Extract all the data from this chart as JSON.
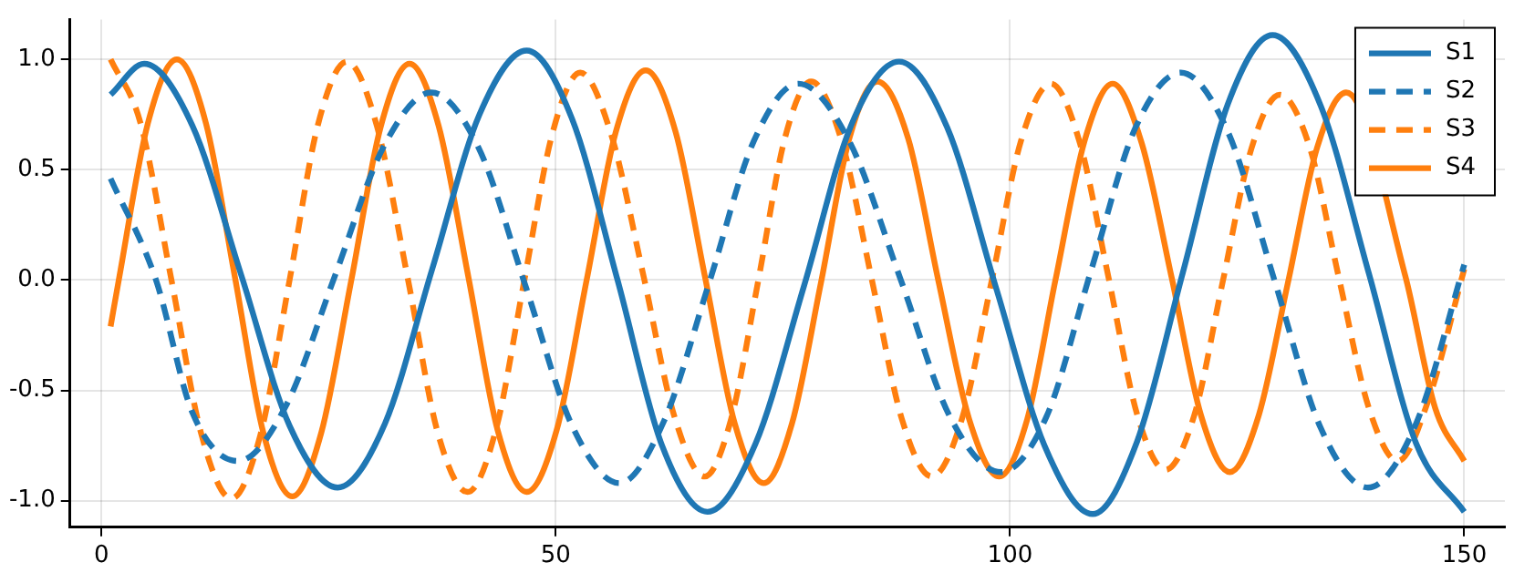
{
  "chart_data": {
    "type": "line",
    "legend": "top right",
    "grid": true,
    "marker": "none",
    "xlim": [
      -3.47,
      154.47
    ],
    "xticks": [
      0,
      50,
      100,
      150
    ],
    "ylim": [
      -1.12,
      1.18
    ],
    "yticks": [
      {
        "value": -1,
        "label": "-1.0"
      },
      {
        "value": -0.5,
        "label": "-0.5"
      },
      {
        "value": 0,
        "label": "0.0"
      },
      {
        "value": 0.5,
        "label": "0.5"
      },
      {
        "value": 1,
        "label": "1.0"
      }
    ],
    "series": [
      {
        "name": "S1",
        "color": "#1f77b4",
        "line_style": "solid",
        "x": [
          1,
          4.7,
          10,
          15.4,
          20.7,
          26,
          31.2,
          36.4,
          41.6,
          46.8,
          51.8,
          56.8,
          61.7,
          66.7,
          72,
          77.3,
          82.5,
          87.8,
          93.1,
          98.5,
          103.8,
          109.1,
          114,
          119,
          124,
          128.9,
          134.2,
          139.5,
          144.7,
          150
        ],
        "values": [
          0.84,
          0.98,
          0.7,
          0.02,
          -0.66,
          -0.94,
          -0.65,
          0.05,
          0.75,
          1.04,
          0.73,
          0.0,
          -0.75,
          -1.05,
          -0.74,
          -0.03,
          0.7,
          0.99,
          0.69,
          -0.04,
          -0.75,
          -1.06,
          -0.73,
          0.03,
          0.8,
          1.11,
          0.79,
          0.03,
          -0.74,
          -1.05
        ]
      },
      {
        "name": "S2",
        "color": "#1f77b4",
        "line_style": "dashed",
        "x": [
          1,
          6,
          10,
          15,
          20.3,
          25.7,
          31,
          36.3,
          41.5,
          46.7,
          51.8,
          57,
          61.9,
          66.9,
          71.8,
          76.7,
          82.3,
          87.9,
          93.4,
          99,
          104,
          108.9,
          113.8,
          118.8,
          124,
          129.1,
          134.2,
          139.4,
          144.7,
          150
        ],
        "values": [
          0.46,
          0.0,
          -0.6,
          -0.82,
          -0.57,
          0.02,
          0.6,
          0.85,
          0.6,
          -0.03,
          -0.66,
          -0.92,
          -0.64,
          -0.01,
          0.63,
          0.89,
          0.63,
          0.01,
          -0.62,
          -0.87,
          -0.62,
          0.04,
          0.69,
          0.94,
          0.67,
          0.0,
          -0.67,
          -0.94,
          -0.65,
          0.07
        ]
      },
      {
        "name": "S3",
        "color": "#ff7f0e",
        "line_style": "dashed",
        "x": [
          1,
          4.3,
          7.7,
          11,
          14.3,
          17.5,
          20.7,
          23.8,
          27,
          30.3,
          33.7,
          37,
          40.3,
          43.4,
          46.5,
          49.6,
          52.7,
          56.1,
          59.6,
          63,
          66.4,
          69.3,
          72.3,
          75.2,
          78.1,
          81.4,
          84.8,
          88.1,
          91.4,
          94.7,
          98,
          101.2,
          104.5,
          107.7,
          110.8,
          114,
          117.1,
          120.3,
          123.4,
          126.6,
          129.7,
          133,
          136.2,
          139.5,
          142.7,
          146,
          150
        ],
        "values": [
          1.0,
          0.71,
          0.0,
          -0.7,
          -0.99,
          -0.7,
          0.0,
          0.7,
          0.99,
          0.7,
          0.01,
          -0.69,
          -0.96,
          -0.68,
          -0.01,
          0.66,
          0.94,
          0.66,
          0.03,
          -0.61,
          -0.89,
          -0.63,
          0.0,
          0.64,
          0.9,
          0.64,
          0.0,
          -0.63,
          -0.89,
          -0.63,
          0.0,
          0.63,
          0.89,
          0.62,
          0.02,
          -0.61,
          -0.86,
          -0.61,
          -0.01,
          0.6,
          0.84,
          0.6,
          0.01,
          -0.58,
          -0.82,
          -0.55,
          0.05
        ]
      },
      {
        "name": "S4",
        "color": "#ff7f0e",
        "line_style": "solid",
        "x": [
          1,
          1.9,
          5.1,
          8.3,
          11.5,
          14.7,
          17.8,
          21,
          24.2,
          27.5,
          30.7,
          33.9,
          37.1,
          40.4,
          43.6,
          46.8,
          50.1,
          53.4,
          56.6,
          59.9,
          63.2,
          66.4,
          69.7,
          72.9,
          76,
          79.2,
          82.3,
          85.4,
          88.8,
          92.1,
          95.5,
          98.8,
          101.9,
          105,
          108.2,
          111.3,
          114.5,
          117.8,
          121,
          124.2,
          127.4,
          130.6,
          133.8,
          137,
          143.5,
          146.8,
          150
        ],
        "values": [
          -0.21,
          0.0,
          0.71,
          1.0,
          0.71,
          0.01,
          -0.69,
          -0.98,
          -0.69,
          0.0,
          0.69,
          0.98,
          0.7,
          0.01,
          -0.68,
          -0.96,
          -0.68,
          0.0,
          0.67,
          0.95,
          0.67,
          0.02,
          -0.65,
          -0.92,
          -0.65,
          -0.01,
          0.64,
          0.9,
          0.64,
          0.0,
          -0.63,
          -0.89,
          -0.63,
          0.0,
          0.63,
          0.89,
          0.62,
          0.01,
          -0.61,
          -0.87,
          -0.61,
          -0.01,
          0.6,
          0.85,
          0.02,
          -0.58,
          -0.82
        ]
      }
    ]
  }
}
